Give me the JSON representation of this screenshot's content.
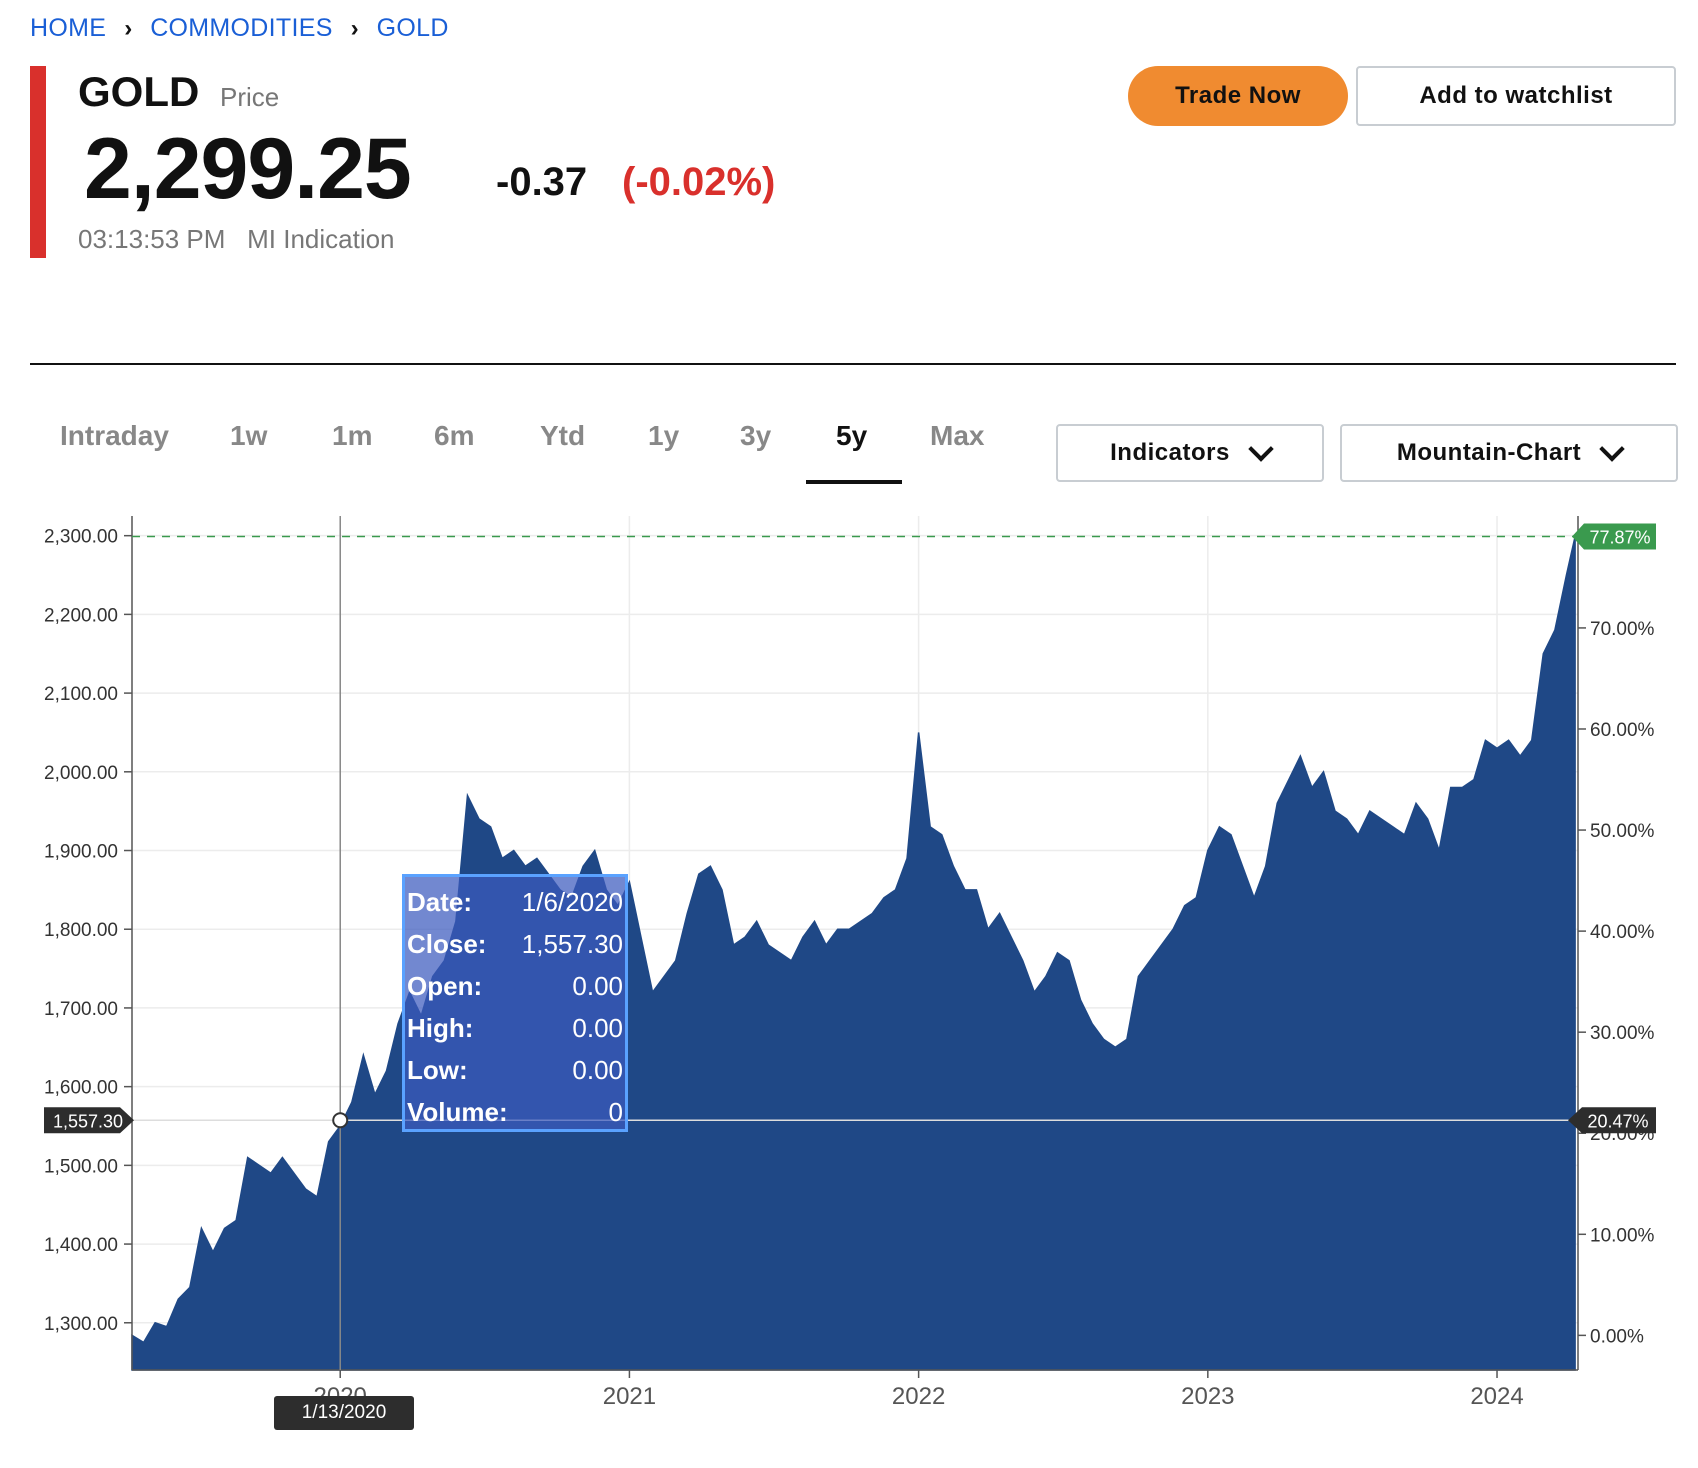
{
  "breadcrumb": [
    "HOME",
    "COMMODITIES",
    "GOLD"
  ],
  "header": {
    "ticker": "GOLD",
    "ticker_sub": "Price",
    "price": "2,299.25",
    "change": "-0.37",
    "change_pct": "(-0.02%)",
    "time": "03:13:53 PM",
    "indication": "MI Indication",
    "trade_label": "Trade Now",
    "watch_label": "Add to watchlist"
  },
  "colors": {
    "accent": "#d9302c",
    "trade": "#f08b30",
    "area": "#1f4886",
    "link": "#1a5fd6",
    "positive": "#3a9a4e"
  },
  "tabs": [
    "Intraday",
    "1w",
    "1m",
    "6m",
    "Ytd",
    "1y",
    "3y",
    "5y",
    "Max"
  ],
  "active_tab": "5y",
  "controls": {
    "indicators_label": "Indicators",
    "charttype_label": "Mountain-Chart"
  },
  "tooltip": {
    "date_label": "Date:",
    "date": "1/6/2020",
    "close_label": "Close:",
    "close": "1,557.30",
    "open_label": "Open:",
    "open": "0.00",
    "high_label": "High:",
    "high": "0.00",
    "low_label": "Low:",
    "low": "0.00",
    "volume_label": "Volume:",
    "volume": "0"
  },
  "crosshair": {
    "date": "1/13/2020",
    "price": "1,557.30",
    "pct": "20.47%"
  },
  "chart_data": {
    "type": "area",
    "y_ticks": [
      "1,300.00",
      "1,400.00",
      "1,500.00",
      "1,600.00",
      "1,700.00",
      "1,800.00",
      "1,900.00",
      "2,000.00",
      "2,100.00",
      "2,200.00",
      "2,300.00"
    ],
    "y2_ticks": [
      "0.00%",
      "10.00%",
      "20.00%",
      "30.00%",
      "40.00%",
      "50.00%",
      "60.00%",
      "70.00%"
    ],
    "x_ticks": [
      "2020",
      "2021",
      "2022",
      "2023",
      "2024"
    ],
    "last_pct": "77.87%",
    "ylim": [
      1240,
      2325
    ],
    "xlim": [
      2019.28,
      2024.28
    ],
    "grid": true,
    "x": [
      2019.28,
      2019.32,
      2019.36,
      2019.4,
      2019.44,
      2019.48,
      2019.52,
      2019.56,
      2019.6,
      2019.64,
      2019.68,
      2019.72,
      2019.76,
      2019.8,
      2019.84,
      2019.88,
      2019.92,
      2019.96,
      2020.0,
      2020.04,
      2020.08,
      2020.12,
      2020.16,
      2020.2,
      2020.24,
      2020.28,
      2020.32,
      2020.36,
      2020.4,
      2020.44,
      2020.48,
      2020.52,
      2020.56,
      2020.6,
      2020.64,
      2020.68,
      2020.72,
      2020.76,
      2020.8,
      2020.84,
      2020.88,
      2020.92,
      2020.96,
      2021.0,
      2021.04,
      2021.08,
      2021.12,
      2021.16,
      2021.2,
      2021.24,
      2021.28,
      2021.32,
      2021.36,
      2021.4,
      2021.44,
      2021.48,
      2021.52,
      2021.56,
      2021.6,
      2021.64,
      2021.68,
      2021.72,
      2021.76,
      2021.8,
      2021.84,
      2021.88,
      2021.92,
      2021.96,
      2022.0,
      2022.04,
      2022.08,
      2022.12,
      2022.16,
      2022.2,
      2022.24,
      2022.28,
      2022.32,
      2022.36,
      2022.4,
      2022.44,
      2022.48,
      2022.52,
      2022.56,
      2022.6,
      2022.64,
      2022.68,
      2022.72,
      2022.76,
      2022.8,
      2022.84,
      2022.88,
      2022.92,
      2022.96,
      2023.0,
      2023.04,
      2023.08,
      2023.12,
      2023.16,
      2023.2,
      2023.24,
      2023.28,
      2023.32,
      2023.36,
      2023.4,
      2023.44,
      2023.48,
      2023.52,
      2023.56,
      2023.6,
      2023.64,
      2023.68,
      2023.72,
      2023.76,
      2023.8,
      2023.84,
      2023.88,
      2023.92,
      2023.96,
      2024.0,
      2024.04,
      2024.08,
      2024.12,
      2024.16,
      2024.2,
      2024.24,
      2024.27
    ],
    "y": [
      1284,
      1275,
      1300,
      1295,
      1330,
      1345,
      1420,
      1390,
      1420,
      1430,
      1510,
      1500,
      1490,
      1510,
      1490,
      1470,
      1460,
      1530,
      1550,
      1580,
      1640,
      1590,
      1620,
      1680,
      1720,
      1690,
      1740,
      1760,
      1810,
      1970,
      1940,
      1930,
      1890,
      1900,
      1880,
      1890,
      1870,
      1850,
      1840,
      1880,
      1900,
      1850,
      1830,
      1860,
      1790,
      1720,
      1740,
      1760,
      1820,
      1870,
      1880,
      1850,
      1780,
      1790,
      1810,
      1780,
      1770,
      1760,
      1790,
      1810,
      1780,
      1800,
      1800,
      1810,
      1820,
      1840,
      1850,
      1890,
      2050,
      1930,
      1920,
      1880,
      1850,
      1850,
      1800,
      1820,
      1790,
      1760,
      1720,
      1740,
      1770,
      1760,
      1710,
      1680,
      1660,
      1650,
      1660,
      1740,
      1760,
      1780,
      1800,
      1830,
      1840,
      1900,
      1930,
      1920,
      1880,
      1840,
      1880,
      1960,
      1990,
      2020,
      1980,
      2000,
      1950,
      1940,
      1920,
      1950,
      1940,
      1930,
      1920,
      1960,
      1940,
      1900,
      1980,
      1980,
      1990,
      2040,
      2030,
      2040,
      2020,
      2040,
      2150,
      2180,
      2250,
      2299
    ]
  }
}
